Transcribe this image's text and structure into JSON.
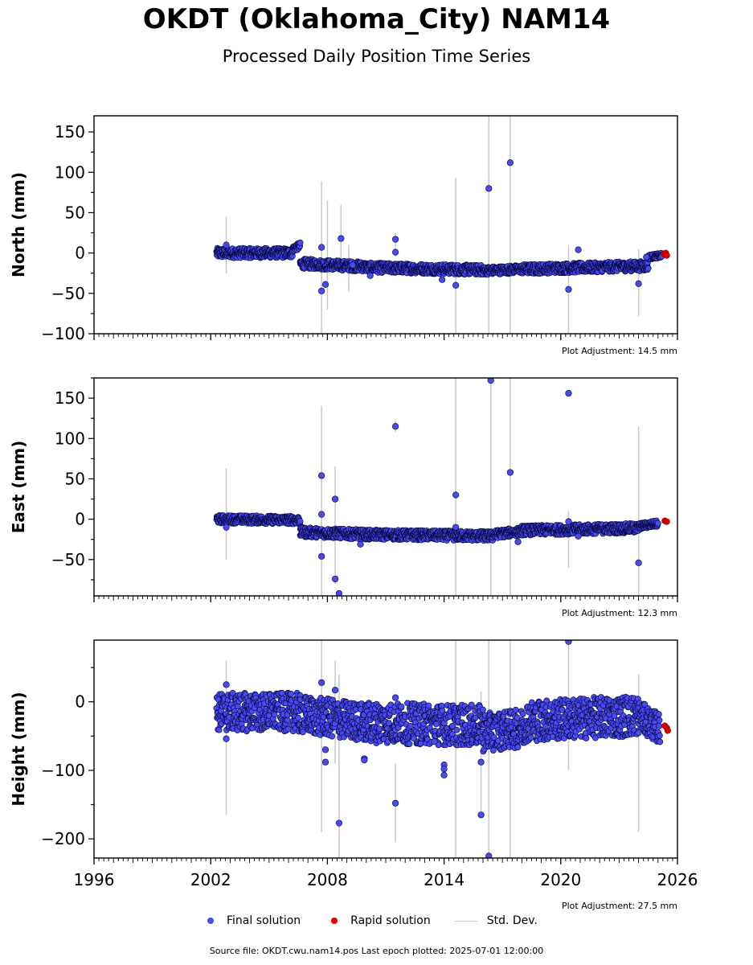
{
  "title": "OKDT (Oklahoma_City) NAM14",
  "subtitle": "Processed Daily Position Time Series",
  "colors": {
    "final": "#4a4af0",
    "rapid": "#e00000",
    "stddev": "#c8c8c8",
    "edge": "#000033"
  },
  "legend": {
    "final": "Final solution",
    "rapid": "Rapid solution",
    "stddev": "Std. Dev."
  },
  "footer": "Source file: OKDT.cwu.nam14.pos  Last epoch plotted: 2025-07-01 12:00:00",
  "chart_data": [
    {
      "type": "scatter",
      "ylabel": "North (mm)",
      "xlim": [
        1996,
        2026
      ],
      "ylim": [
        -100,
        170
      ],
      "yticks": [
        -100,
        -50,
        0,
        50,
        100,
        150
      ],
      "xticks": [
        1996,
        2002,
        2008,
        2014,
        2020,
        2026
      ],
      "show_xticklabels": false,
      "adjustment": "Plot Adjustment: 14.5 mm",
      "segments": [
        {
          "x": [
            2002.3,
            2006.2
          ],
          "y": [
            0,
            0
          ],
          "band": 6
        },
        {
          "x": [
            2006.2,
            2006.6
          ],
          "y": [
            5,
            9
          ],
          "band": 4
        },
        {
          "x": [
            2006.6,
            2010
          ],
          "y": [
            -13,
            -17
          ],
          "band": 6
        },
        {
          "x": [
            2010,
            2016
          ],
          "y": [
            -18,
            -21
          ],
          "band": 6
        },
        {
          "x": [
            2016,
            2018
          ],
          "y": [
            -22,
            -20
          ],
          "band": 5
        },
        {
          "x": [
            2018,
            2024.5
          ],
          "y": [
            -20,
            -16
          ],
          "band": 6
        },
        {
          "x": [
            2024.5,
            2025.2
          ],
          "y": [
            -5,
            -3
          ],
          "band": 3
        }
      ],
      "outliers": [
        [
          2002.8,
          10
        ],
        [
          2007.7,
          -47
        ],
        [
          2007.7,
          7
        ],
        [
          2007.9,
          -39
        ],
        [
          2008.7,
          18
        ],
        [
          2009.3,
          -15
        ],
        [
          2010.2,
          -28
        ],
        [
          2011.5,
          17
        ],
        [
          2011.5,
          1
        ],
        [
          2013.9,
          -33
        ],
        [
          2014.6,
          -40
        ],
        [
          2016.3,
          80
        ],
        [
          2017.4,
          112
        ],
        [
          2020.4,
          -45
        ],
        [
          2020.9,
          4
        ],
        [
          2024.0,
          -38
        ],
        [
          2024.4,
          -5
        ]
      ],
      "rapid": [
        [
          2025.3,
          -1
        ],
        [
          2025.4,
          0
        ],
        [
          2025.45,
          -3
        ]
      ],
      "errorbars": [
        [
          2002.8,
          -25,
          45
        ],
        [
          2007.7,
          -100,
          89
        ],
        [
          2008.0,
          -70,
          65
        ],
        [
          2008.7,
          -20,
          60
        ],
        [
          2009.1,
          -48,
          10
        ],
        [
          2011.5,
          -5,
          25
        ],
        [
          2014.6,
          -100,
          93
        ],
        [
          2016.3,
          -100,
          170
        ],
        [
          2017.4,
          -100,
          170
        ],
        [
          2020.4,
          -100,
          10
        ],
        [
          2024.0,
          -78,
          5
        ]
      ]
    },
    {
      "type": "scatter",
      "ylabel": "East (mm)",
      "xlim": [
        1996,
        2026
      ],
      "ylim": [
        -95,
        175
      ],
      "yticks": [
        -50,
        0,
        50,
        100,
        150
      ],
      "xticks": [
        1996,
        2002,
        2008,
        2014,
        2020,
        2026
      ],
      "show_xticklabels": false,
      "adjustment": "Plot Adjustment: 12.3 mm",
      "segments": [
        {
          "x": [
            2002.3,
            2006.6
          ],
          "y": [
            0,
            -1
          ],
          "band": 5
        },
        {
          "x": [
            2006.6,
            2010
          ],
          "y": [
            -16,
            -19
          ],
          "band": 6
        },
        {
          "x": [
            2010,
            2016.5
          ],
          "y": [
            -19,
            -21
          ],
          "band": 6
        },
        {
          "x": [
            2016.5,
            2018
          ],
          "y": [
            -19,
            -15
          ],
          "band": 5
        },
        {
          "x": [
            2018,
            2024
          ],
          "y": [
            -14,
            -11
          ],
          "band": 6
        },
        {
          "x": [
            2024,
            2025.0
          ],
          "y": [
            -9,
            -5
          ],
          "band": 4
        }
      ],
      "outliers": [
        [
          2002.8,
          -10
        ],
        [
          2007.7,
          54
        ],
        [
          2007.7,
          6
        ],
        [
          2007.7,
          -46
        ],
        [
          2008.4,
          25
        ],
        [
          2008.4,
          -74
        ],
        [
          2008.6,
          -92
        ],
        [
          2009.7,
          -31
        ],
        [
          2011.5,
          115
        ],
        [
          2014.6,
          30
        ],
        [
          2014.6,
          -10
        ],
        [
          2016.4,
          172
        ],
        [
          2017.4,
          58
        ],
        [
          2017.8,
          -28
        ],
        [
          2020.4,
          156
        ],
        [
          2020.4,
          -3
        ],
        [
          2020.9,
          -21
        ],
        [
          2024.0,
          -54
        ]
      ],
      "rapid": [
        [
          2025.35,
          -2
        ],
        [
          2025.45,
          -3
        ]
      ],
      "errorbars": [
        [
          2002.8,
          -50,
          63
        ],
        [
          2007.7,
          -95,
          140
        ],
        [
          2008.4,
          -80,
          65
        ],
        [
          2011.5,
          108,
          122
        ],
        [
          2014.6,
          -95,
          175
        ],
        [
          2016.4,
          -95,
          175
        ],
        [
          2017.4,
          -95,
          175
        ],
        [
          2020.4,
          -60,
          10
        ],
        [
          2024.0,
          -95,
          115
        ]
      ]
    },
    {
      "type": "scatter",
      "ylabel": "Height (mm)",
      "xlim": [
        1996,
        2026
      ],
      "ylim": [
        -228,
        90
      ],
      "yticks": [
        -200,
        -100,
        0
      ],
      "xticks": [
        1996,
        2002,
        2008,
        2014,
        2020,
        2026
      ],
      "xtick_labels": [
        "1996",
        "2002",
        "2008",
        "2014",
        "2020",
        "2026"
      ],
      "show_xticklabels": true,
      "adjustment": "Plot Adjustment: 27.5 mm",
      "segments": [
        {
          "x": [
            2002.3,
            2006.5
          ],
          "y": [
            -15,
            -15
          ],
          "band": 28
        },
        {
          "x": [
            2006.5,
            2010
          ],
          "y": [
            -18,
            -30
          ],
          "band": 28
        },
        {
          "x": [
            2010,
            2016
          ],
          "y": [
            -30,
            -35
          ],
          "band": 30
        },
        {
          "x": [
            2016,
            2018.2
          ],
          "y": [
            -45,
            -38
          ],
          "band": 28
        },
        {
          "x": [
            2018.2,
            2024
          ],
          "y": [
            -28,
            -20
          ],
          "band": 30
        },
        {
          "x": [
            2024,
            2025.1
          ],
          "y": [
            -20,
            -40
          ],
          "band": 22
        }
      ],
      "outliers": [
        [
          2002.8,
          25
        ],
        [
          2002.8,
          -54
        ],
        [
          2007.7,
          28
        ],
        [
          2007.9,
          -70
        ],
        [
          2007.9,
          -88
        ],
        [
          2008.4,
          17
        ],
        [
          2008.6,
          -177
        ],
        [
          2009.9,
          -83
        ],
        [
          2009.9,
          -85
        ],
        [
          2011.5,
          -148
        ],
        [
          2011.5,
          6
        ],
        [
          2013.5,
          -58
        ],
        [
          2014.0,
          -92
        ],
        [
          2014.0,
          -98
        ],
        [
          2014.0,
          -107
        ],
        [
          2015.9,
          -88
        ],
        [
          2015.9,
          -165
        ],
        [
          2016.3,
          -225
        ],
        [
          2020.4,
          88
        ],
        [
          2024.0,
          -45
        ]
      ],
      "rapid": [
        [
          2025.35,
          -35
        ],
        [
          2025.45,
          -38
        ],
        [
          2025.5,
          -42
        ]
      ],
      "errorbars": [
        [
          2002.8,
          -165,
          60
        ],
        [
          2007.7,
          -190,
          95
        ],
        [
          2008.4,
          -90,
          60
        ],
        [
          2008.6,
          -228,
          40
        ],
        [
          2011.5,
          -205,
          -90
        ],
        [
          2014.6,
          -228,
          95
        ],
        [
          2015.9,
          -170,
          15
        ],
        [
          2016.3,
          -228,
          95
        ],
        [
          2017.4,
          -228,
          95
        ],
        [
          2020.4,
          -100,
          90
        ],
        [
          2024.0,
          -190,
          40
        ]
      ]
    }
  ]
}
